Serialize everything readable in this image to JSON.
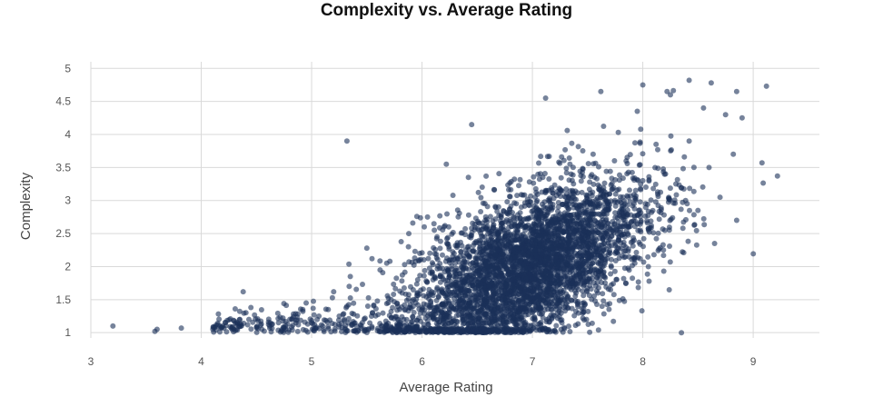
{
  "chart_data": {
    "type": "scatter",
    "title": "Complexity vs. Average Rating",
    "xlabel": "Average Rating",
    "ylabel": "Complexity",
    "xlim": [
      3,
      9.6
    ],
    "ylim": [
      0.92,
      5.1
    ],
    "x_ticks": [
      3,
      4,
      5,
      6,
      7,
      8,
      9
    ],
    "y_ticks": [
      1,
      1.5,
      2,
      2.5,
      3,
      3.5,
      4,
      4.5,
      5
    ],
    "grid": true,
    "legend": "none",
    "point_color": "#1b3158",
    "series": [
      {
        "x": [
          3.2,
          3.58,
          3.6,
          3.82,
          4.12,
          4.15,
          4.22,
          4.28,
          4.35,
          4.38,
          4.42,
          4.45,
          4.55,
          4.62,
          4.7,
          4.75,
          4.82,
          4.88,
          4.92,
          4.95,
          5.0,
          5.05,
          5.1,
          5.15,
          5.2,
          5.25,
          5.32,
          5.35,
          5.45,
          5.5,
          5.55,
          5.62,
          5.68,
          5.72,
          5.78,
          5.82,
          5.88,
          5.92,
          5.98,
          6.05,
          6.1,
          6.15,
          6.2,
          6.25,
          6.3,
          6.35,
          6.42,
          6.48,
          6.55,
          6.62,
          6.7,
          6.75,
          6.82,
          6.9,
          6.98,
          7.05,
          7.12,
          7.2,
          7.28,
          7.35,
          7.42,
          7.5,
          7.55,
          7.62,
          7.7,
          7.78,
          7.85,
          7.92,
          8.0,
          8.05,
          8.12,
          8.2,
          8.25,
          8.3,
          8.35,
          8.42,
          8.5,
          8.55,
          8.6,
          8.65,
          8.7,
          8.75,
          8.82,
          8.85,
          8.9,
          9.08,
          9.12,
          9.22,
          5.32,
          6.02,
          6.22,
          6.45,
          7.12,
          7.62,
          7.95,
          8.0,
          8.22,
          8.42,
          8.62,
          8.85
        ],
        "y": [
          1.1,
          1.02,
          1.05,
          1.07,
          1.08,
          1.12,
          1.15,
          1.05,
          1.2,
          1.62,
          1.12,
          1.38,
          1.05,
          1.1,
          1.15,
          1.08,
          1.2,
          1.12,
          1.35,
          1.45,
          1.15,
          1.2,
          1.1,
          1.35,
          1.62,
          1.25,
          1.4,
          1.85,
          1.1,
          2.28,
          1.3,
          1.95,
          2.05,
          1.5,
          1.2,
          1.6,
          2.5,
          1.4,
          2.2,
          2.75,
          1.8,
          1.55,
          2.6,
          1.35,
          2.05,
          1.7,
          3.35,
          1.9,
          2.45,
          2.1,
          1.65,
          2.35,
          2.0,
          2.9,
          1.85,
          2.45,
          3.15,
          2.2,
          2.7,
          3.4,
          2.3,
          2.85,
          3.7,
          2.55,
          3.1,
          2.4,
          3.6,
          2.95,
          3.3,
          2.0,
          3.85,
          2.55,
          4.6,
          3.25,
          1.0,
          3.9,
          2.85,
          4.4,
          3.5,
          2.35,
          3.05,
          4.3,
          3.7,
          2.7,
          4.25,
          3.57,
          4.73,
          3.37,
          3.9,
          2.6,
          3.55,
          4.15,
          4.55,
          4.65,
          4.35,
          4.75,
          4.65,
          4.82,
          4.78,
          4.65
        ],
        "count_note": "approximately 10000 points; dense cluster centered near rating 6.5-7.5, complexity 1.5-2.5"
      }
    ]
  }
}
